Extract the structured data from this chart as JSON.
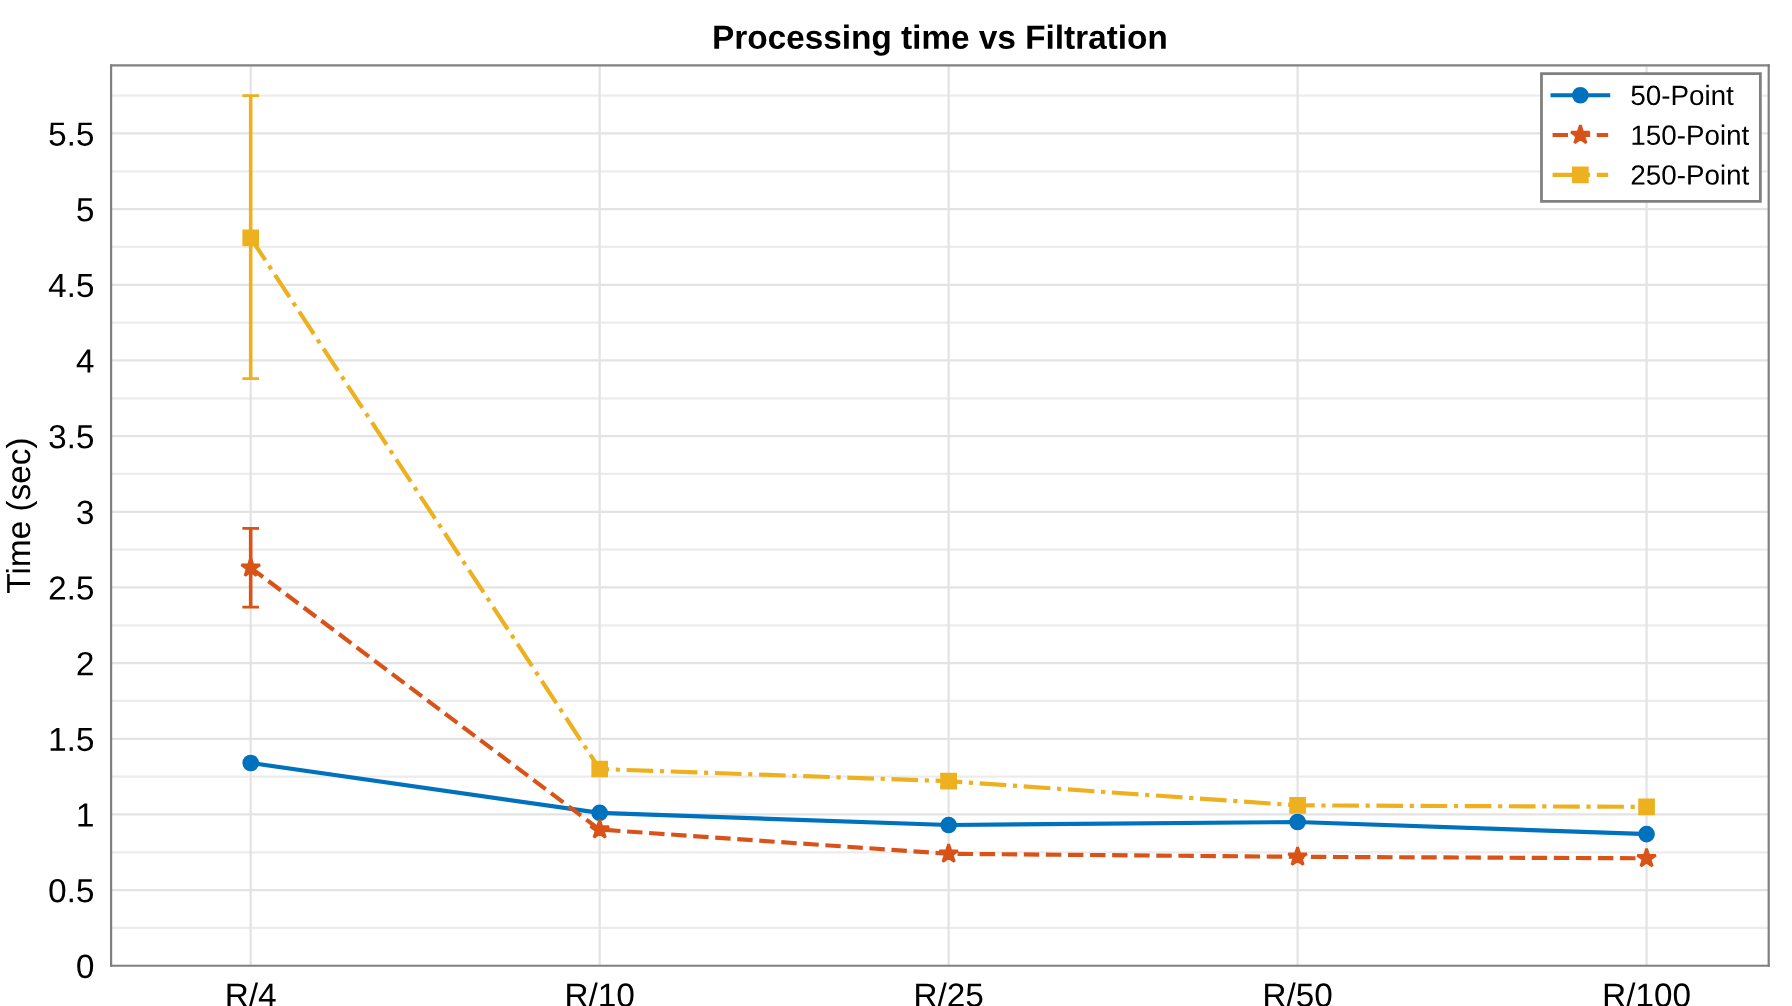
{
  "chart_data": {
    "type": "line",
    "title": "Processing time vs Filtration",
    "ylabel": "Time (sec)",
    "categories": [
      "R/4",
      "R/10",
      "R/25",
      "R/50",
      "R/100"
    ],
    "series": [
      {
        "name": "50-Point",
        "color": "#0072bd",
        "marker": "circle",
        "line_style": "solid",
        "values": [
          1.34,
          1.01,
          0.93,
          0.95,
          0.87
        ]
      },
      {
        "name": "150-Point",
        "color": "#d95319",
        "marker": "star",
        "line_style": "dashed",
        "values": [
          2.63,
          0.9,
          0.74,
          0.72,
          0.71
        ],
        "errors": [
          [
            2.37,
            2.89
          ],
          null,
          null,
          null,
          null
        ]
      },
      {
        "name": "250-Point",
        "color": "#edb120",
        "marker": "square",
        "line_style": "dashdot",
        "values": [
          4.81,
          1.3,
          1.22,
          1.06,
          1.05
        ],
        "errors": [
          [
            3.88,
            5.75
          ],
          null,
          [
            1.18,
            1.26
          ],
          null,
          null
        ]
      }
    ],
    "ylim": [
      0,
      5.95
    ],
    "yticks": [
      0,
      0.5,
      1,
      1.5,
      2,
      2.5,
      3,
      3.5,
      4,
      4.5,
      5,
      5.5
    ],
    "grid": true,
    "legend": "top right"
  }
}
